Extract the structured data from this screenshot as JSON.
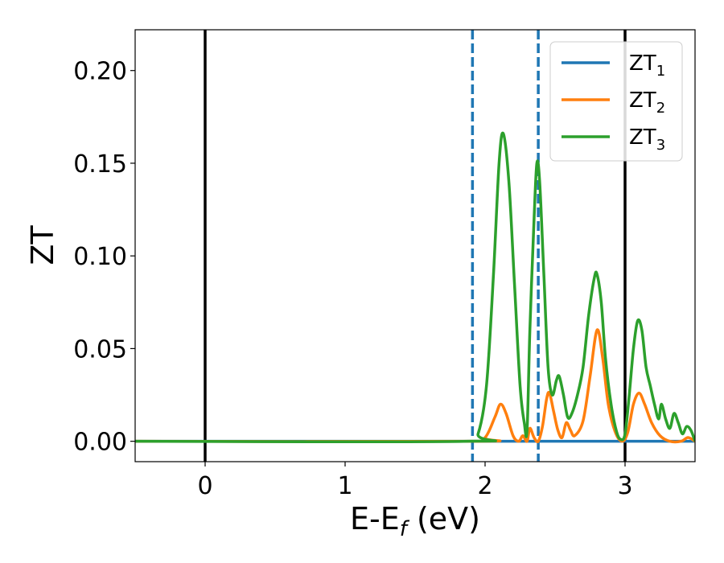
{
  "chart_data": {
    "type": "line",
    "xlabel": {
      "main": "E-E",
      "sub": "f",
      "suffix": " (eV)"
    },
    "ylabel": "ZT",
    "xlim": [
      -0.5,
      3.5
    ],
    "ylim": [
      -0.011,
      0.222
    ],
    "xticks": [
      {
        "value": 0,
        "label": "0"
      },
      {
        "value": 1,
        "label": "1"
      },
      {
        "value": 2,
        "label": "2"
      },
      {
        "value": 3,
        "label": "3"
      }
    ],
    "yticks": [
      {
        "value": 0.0,
        "label": "0.00"
      },
      {
        "value": 0.05,
        "label": "0.05"
      },
      {
        "value": 0.1,
        "label": "0.10"
      },
      {
        "value": 0.15,
        "label": "0.15"
      },
      {
        "value": 0.2,
        "label": "0.20"
      }
    ],
    "vlines": [
      {
        "x": 0.0,
        "style": "solid",
        "color": "#000000"
      },
      {
        "x": 3.0,
        "style": "solid",
        "color": "#000000"
      },
      {
        "x": 1.91,
        "style": "dashed",
        "color": "#1f77b4"
      },
      {
        "x": 2.38,
        "style": "dashed",
        "color": "#1f77b4"
      }
    ],
    "legend_position": "top-right",
    "series": [
      {
        "name": "ZT",
        "name_sub": "1",
        "color": "#1f77b4",
        "points": [
          [
            -0.5,
            0.0
          ],
          [
            3.5,
            0.0
          ]
        ]
      },
      {
        "name": "ZT",
        "name_sub": "2",
        "color": "#ff7f0e",
        "points": [
          [
            -0.5,
            0.0
          ],
          [
            1.9,
            0.0
          ],
          [
            2.0,
            0.002
          ],
          [
            2.07,
            0.013
          ],
          [
            2.11,
            0.02
          ],
          [
            2.15,
            0.015
          ],
          [
            2.2,
            0.003
          ],
          [
            2.24,
            0.0
          ],
          [
            2.27,
            0.003
          ],
          [
            2.3,
            0.0
          ],
          [
            2.32,
            0.007
          ],
          [
            2.35,
            0.002
          ],
          [
            2.38,
            0.0
          ],
          [
            2.41,
            0.008
          ],
          [
            2.44,
            0.023
          ],
          [
            2.46,
            0.026
          ],
          [
            2.49,
            0.016
          ],
          [
            2.52,
            0.006
          ],
          [
            2.55,
            0.002
          ],
          [
            2.58,
            0.01
          ],
          [
            2.61,
            0.006
          ],
          [
            2.64,
            0.003
          ],
          [
            2.7,
            0.011
          ],
          [
            2.75,
            0.035
          ],
          [
            2.8,
            0.06
          ],
          [
            2.84,
            0.045
          ],
          [
            2.88,
            0.02
          ],
          [
            2.93,
            0.005
          ],
          [
            2.98,
            0.0
          ],
          [
            3.02,
            0.005
          ],
          [
            3.06,
            0.02
          ],
          [
            3.1,
            0.026
          ],
          [
            3.14,
            0.02
          ],
          [
            3.19,
            0.01
          ],
          [
            3.25,
            0.003
          ],
          [
            3.32,
            0.0
          ],
          [
            3.4,
            0.0
          ],
          [
            3.45,
            0.002
          ],
          [
            3.5,
            0.0
          ]
        ]
      },
      {
        "name": "ZT",
        "name_sub": "3",
        "color": "#2ca02c",
        "points": [
          [
            -0.5,
            0.0
          ],
          [
            1.88,
            0.0
          ],
          [
            1.95,
            0.004
          ],
          [
            2.01,
            0.03
          ],
          [
            2.06,
            0.09
          ],
          [
            2.1,
            0.15
          ],
          [
            2.13,
            0.166
          ],
          [
            2.17,
            0.14
          ],
          [
            2.21,
            0.085
          ],
          [
            2.25,
            0.03
          ],
          [
            2.28,
            0.01
          ],
          [
            2.3,
            0.006
          ],
          [
            2.32,
            0.06
          ],
          [
            2.35,
            0.12
          ],
          [
            2.37,
            0.15
          ],
          [
            2.39,
            0.14
          ],
          [
            2.42,
            0.09
          ],
          [
            2.45,
            0.04
          ],
          [
            2.48,
            0.025
          ],
          [
            2.51,
            0.033
          ],
          [
            2.53,
            0.035
          ],
          [
            2.56,
            0.025
          ],
          [
            2.59,
            0.013
          ],
          [
            2.62,
            0.015
          ],
          [
            2.66,
            0.025
          ],
          [
            2.7,
            0.04
          ],
          [
            2.74,
            0.068
          ],
          [
            2.78,
            0.088
          ],
          [
            2.8,
            0.09
          ],
          [
            2.83,
            0.075
          ],
          [
            2.86,
            0.045
          ],
          [
            2.9,
            0.02
          ],
          [
            2.94,
            0.005
          ],
          [
            2.97,
            0.001
          ],
          [
            3.0,
            0.004
          ],
          [
            3.03,
            0.025
          ],
          [
            3.06,
            0.05
          ],
          [
            3.09,
            0.065
          ],
          [
            3.12,
            0.06
          ],
          [
            3.15,
            0.04
          ],
          [
            3.18,
            0.03
          ],
          [
            3.21,
            0.02
          ],
          [
            3.24,
            0.012
          ],
          [
            3.26,
            0.02
          ],
          [
            3.29,
            0.012
          ],
          [
            3.32,
            0.007
          ],
          [
            3.35,
            0.015
          ],
          [
            3.38,
            0.01
          ],
          [
            3.41,
            0.004
          ],
          [
            3.44,
            0.008
          ],
          [
            3.47,
            0.006
          ],
          [
            3.5,
            0.0
          ]
        ]
      }
    ]
  }
}
